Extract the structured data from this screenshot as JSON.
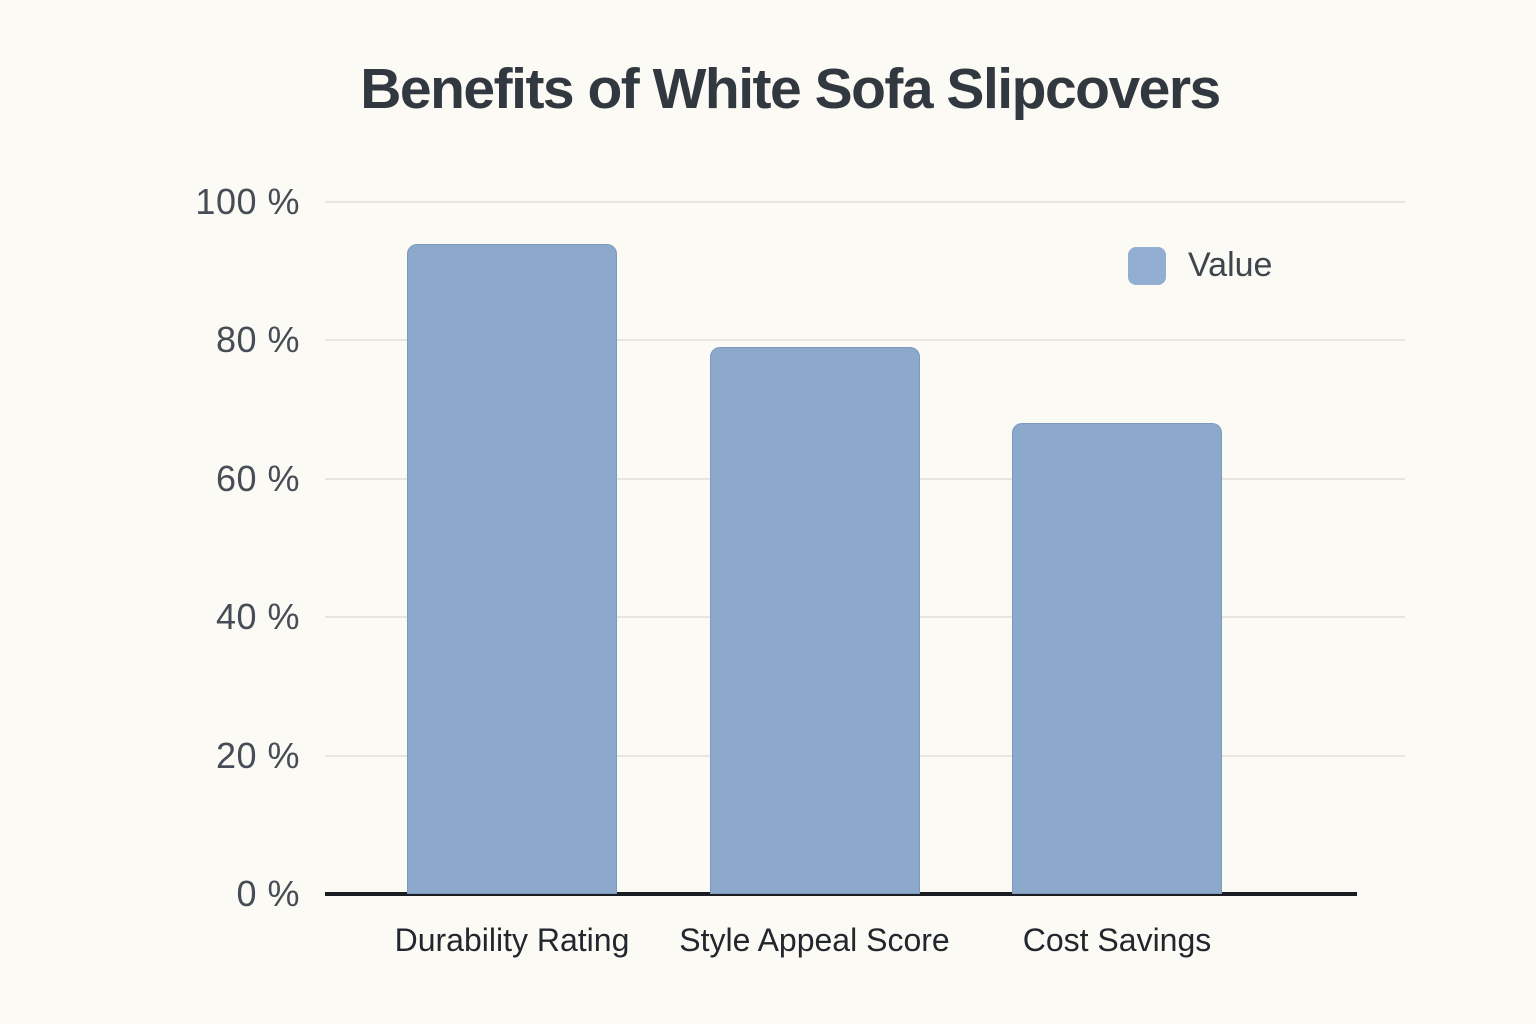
{
  "background_color": "#FCFAF4",
  "title": "Benefits of White Sofa Slipcovers",
  "legend": {
    "label": "Value",
    "position": "top-right"
  },
  "chart_data": {
    "type": "bar",
    "title": "Benefits of White Sofa Slipcovers",
    "categories": [
      "Durability Rating",
      "Style Appeal Score",
      "Cost Savings"
    ],
    "series": [
      {
        "name": "Value",
        "values": [
          94,
          79,
          68
        ]
      }
    ],
    "unit": "%",
    "ylim": [
      0,
      100
    ],
    "y_ticks": [
      0,
      20,
      40,
      60,
      80,
      100
    ],
    "y_tick_labels": [
      "0 %",
      "20 %",
      "40 %",
      "60 %",
      "80 %",
      "100 %"
    ],
    "xlabel": "",
    "ylabel": "",
    "grid": true,
    "legend_position": "top-right",
    "colors": {
      "bar_fill": "#8CA9CC",
      "bar_edge": "#7E9CC0",
      "legend_swatch": "#92AED3",
      "gridline": "#E8E5DF",
      "axis_line": "#191C20",
      "title_text": "#32383F",
      "tick_text": "#464D56",
      "category_text": "#22272E",
      "background": "#FCFAF4"
    }
  }
}
